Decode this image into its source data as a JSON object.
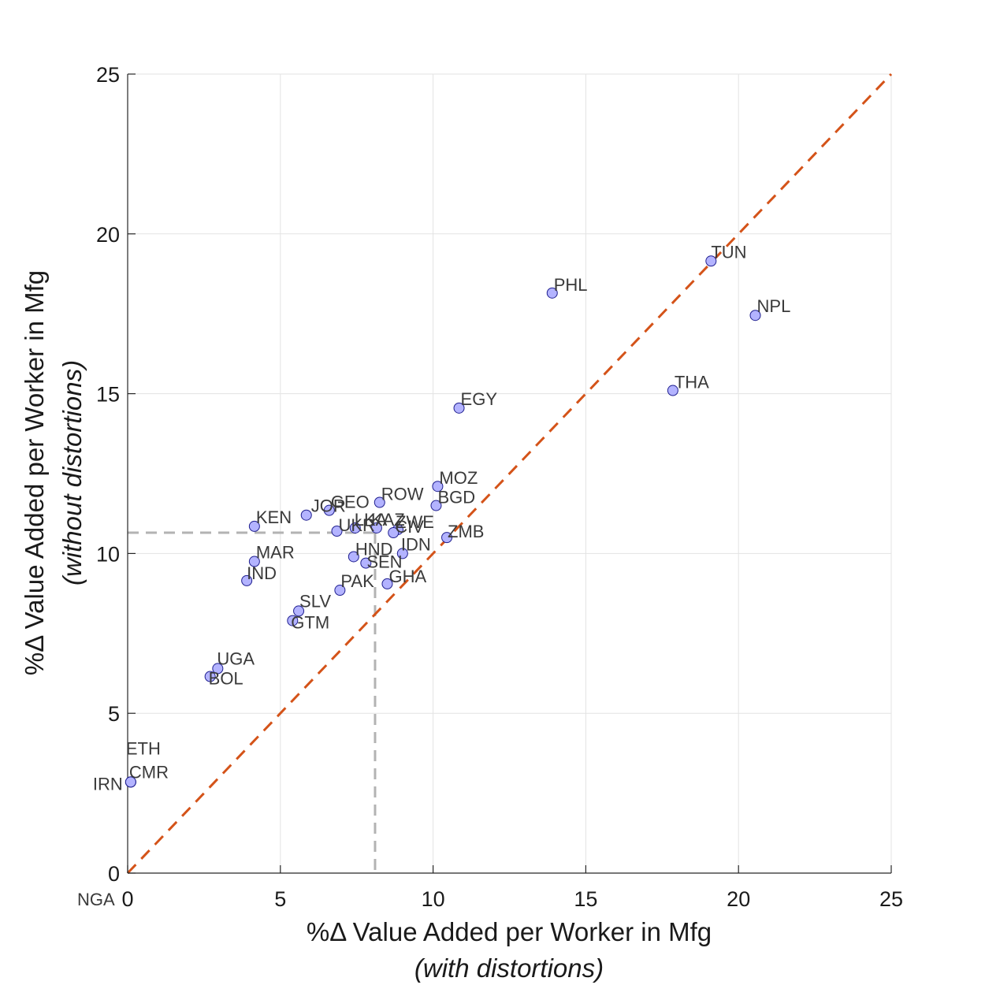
{
  "chart_data": {
    "type": "scatter",
    "xlabel": "%Δ Value Added per Worker in Mfg",
    "xlabel_sub": "(with distortions)",
    "ylabel": "%Δ Value Added per Worker in Mfg",
    "ylabel_sub": "(without distortions)",
    "xlim": [
      0,
      25
    ],
    "ylim": [
      0,
      25
    ],
    "xticks": [
      0,
      5,
      10,
      15,
      20,
      25
    ],
    "yticks": [
      0,
      5,
      10,
      15,
      20,
      25
    ],
    "grid": true,
    "marker_color": "#b3b3ff",
    "marker_edge": "#1f1f8f",
    "diagonal_color": "#d45319",
    "reference_color": "#b3b3b3",
    "reference_point": {
      "x": 8.1,
      "y": 10.65
    },
    "points": [
      {
        "label": "TUN",
        "x": 19.1,
        "y": 19.15
      },
      {
        "label": "PHL",
        "x": 13.9,
        "y": 18.15
      },
      {
        "label": "NPL",
        "x": 20.55,
        "y": 17.45
      },
      {
        "label": "THA",
        "x": 17.85,
        "y": 15.1
      },
      {
        "label": "EGY",
        "x": 10.85,
        "y": 14.55
      },
      {
        "label": "MOZ",
        "x": 10.15,
        "y": 12.1
      },
      {
        "label": "ROW",
        "x": 8.25,
        "y": 11.6
      },
      {
        "label": "BGD",
        "x": 10.1,
        "y": 11.5
      },
      {
        "label": "GEO",
        "x": 6.6,
        "y": 11.35
      },
      {
        "label": "JOR",
        "x": 5.85,
        "y": 11.2
      },
      {
        "label": "KEN",
        "x": 4.15,
        "y": 10.85
      },
      {
        "label": "LKA",
        "x": 7.45,
        "y": 10.8
      },
      {
        "label": "KAZ",
        "x": 8.15,
        "y": 10.8
      },
      {
        "label": "ZWE",
        "x": 8.85,
        "y": 10.75
      },
      {
        "label": "UKR",
        "x": 6.85,
        "y": 10.7
      },
      {
        "label": "CIV",
        "x": 8.7,
        "y": 10.65
      },
      {
        "label": "ZMB",
        "x": 10.45,
        "y": 10.5
      },
      {
        "label": "IDN",
        "x": 9.0,
        "y": 10.0
      },
      {
        "label": "HND",
        "x": 7.4,
        "y": 9.9
      },
      {
        "label": "SEN",
        "x": 7.8,
        "y": 9.7
      },
      {
        "label": "MAR",
        "x": 4.15,
        "y": 9.75
      },
      {
        "label": "IND",
        "x": 3.9,
        "y": 9.15
      },
      {
        "label": "GHA",
        "x": 8.5,
        "y": 9.05
      },
      {
        "label": "PAK",
        "x": 6.95,
        "y": 8.85
      },
      {
        "label": "SLV",
        "x": 5.6,
        "y": 8.2
      },
      {
        "label": "GTM",
        "x": 5.4,
        "y": 7.9
      },
      {
        "label": "UGA",
        "x": 2.95,
        "y": 6.4
      },
      {
        "label": "BOL",
        "x": 2.7,
        "y": 6.15
      },
      {
        "label": "ETH",
        "x": 0.1,
        "y": 2.85
      },
      {
        "label": "CMR",
        "x": 0.1,
        "y": 2.85
      },
      {
        "label": "IRN",
        "x": 0.1,
        "y": 2.85
      },
      {
        "label": "NGA",
        "x": 0,
        "y": 0
      }
    ]
  }
}
